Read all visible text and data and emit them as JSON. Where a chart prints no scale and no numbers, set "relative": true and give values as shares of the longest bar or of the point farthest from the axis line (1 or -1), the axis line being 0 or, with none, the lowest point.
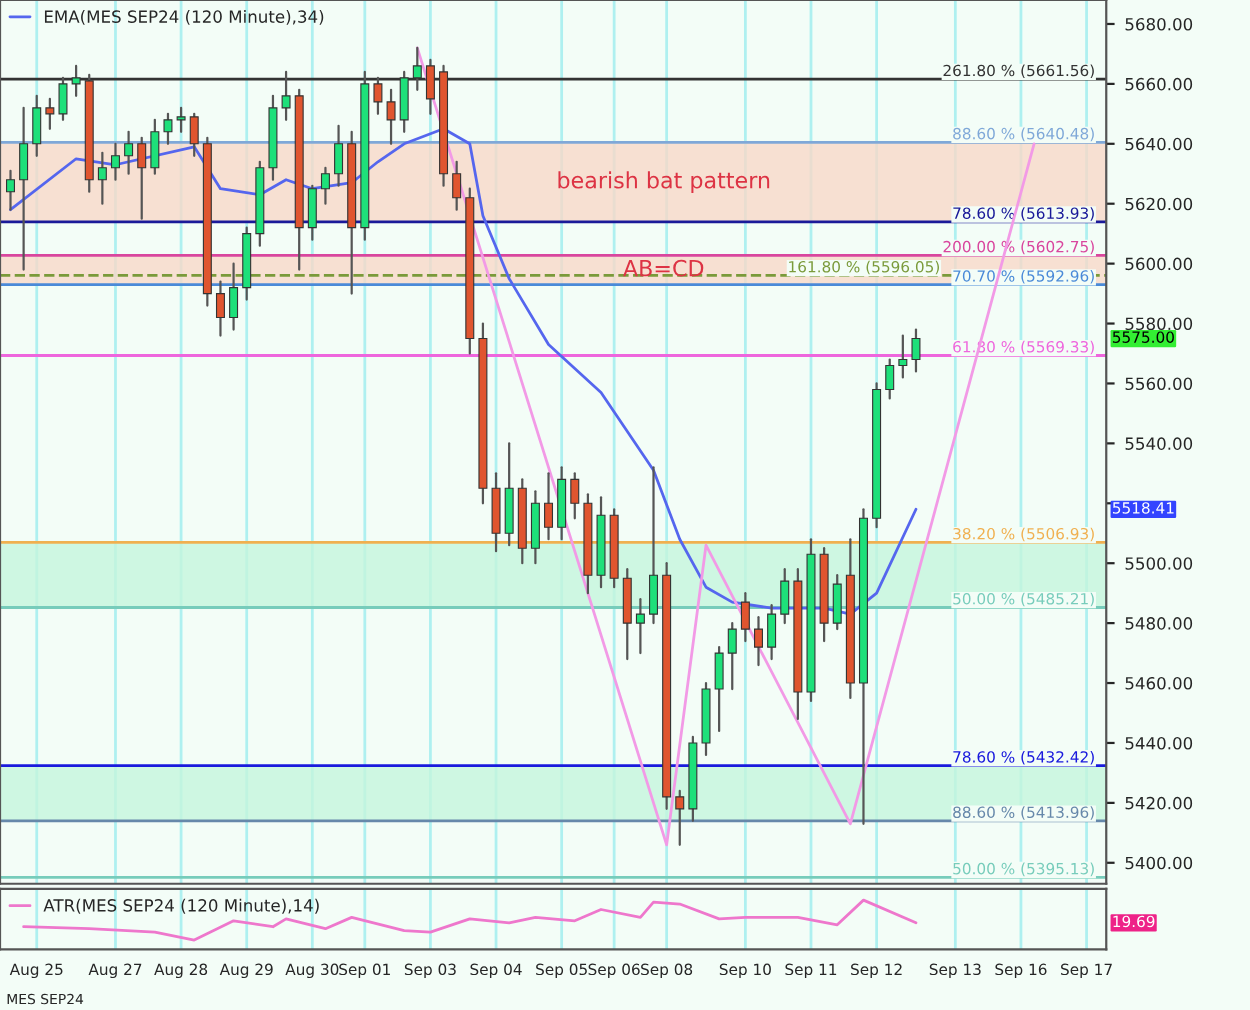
{
  "chart_data": [
    {
      "type": "candlestick",
      "categories": [
        null,
        null,
        null,
        null,
        null,
        null,
        null,
        null,
        null,
        null,
        null,
        null,
        null,
        null,
        null,
        null,
        null,
        null,
        null,
        null,
        null,
        null,
        null,
        null,
        null,
        null,
        null,
        null,
        null,
        null,
        null,
        null,
        null,
        null,
        null,
        null,
        null,
        null,
        null,
        null,
        null,
        null,
        null,
        null,
        null,
        null,
        null,
        null,
        null,
        null,
        null,
        null,
        null,
        null,
        null,
        null,
        null,
        null,
        null,
        null,
        null,
        null,
        null,
        null,
        null,
        null,
        null,
        null,
        null,
        null,
        null,
        null,
        null,
        null,
        null,
        null,
        null,
        null,
        null,
        null,
        null,
        null,
        null,
        null
      ],
      "ohlc": [
        [
          5624,
          5631,
          5618,
          5628
        ],
        [
          5628,
          5652,
          5598,
          5640
        ],
        [
          5640,
          5656,
          5636,
          5652
        ],
        [
          5652,
          5655,
          5645,
          5650
        ],
        [
          5650,
          5662,
          5648,
          5660
        ],
        [
          5660,
          5666,
          5656,
          5662
        ],
        [
          5661,
          5663,
          5624,
          5628
        ],
        [
          5628,
          5637,
          5620,
          5632
        ],
        [
          5632,
          5640,
          5628,
          5636
        ],
        [
          5636,
          5644,
          5630,
          5640
        ],
        [
          5640,
          5642,
          5615,
          5632
        ],
        [
          5632,
          5648,
          5630,
          5644
        ],
        [
          5644,
          5650,
          5640,
          5648
        ],
        [
          5648,
          5652,
          5644,
          5649
        ],
        [
          5649,
          5650,
          5636,
          5640
        ],
        [
          5640,
          5642,
          5586,
          5590
        ],
        [
          5590,
          5594,
          5576,
          5582
        ],
        [
          5582,
          5600,
          5578,
          5592
        ],
        [
          5592,
          5612,
          5588,
          5610
        ],
        [
          5610,
          5634,
          5606,
          5632
        ],
        [
          5632,
          5656,
          5628,
          5652
        ],
        [
          5652,
          5664,
          5648,
          5656
        ],
        [
          5656,
          5658,
          5598,
          5612
        ],
        [
          5612,
          5626,
          5608,
          5625
        ],
        [
          5625,
          5632,
          5620,
          5630
        ],
        [
          5630,
          5646,
          5626,
          5640
        ],
        [
          5640,
          5644,
          5590,
          5612
        ],
        [
          5612,
          5664,
          5608,
          5660
        ],
        [
          5660,
          5662,
          5650,
          5654
        ],
        [
          5654,
          5658,
          5640,
          5648
        ],
        [
          5648,
          5664,
          5644,
          5662
        ],
        [
          5662,
          5672,
          5658,
          5666
        ],
        [
          5666,
          5668,
          5650,
          5655
        ],
        [
          5664,
          5666,
          5626,
          5630
        ],
        [
          5630,
          5634,
          5618,
          5622
        ],
        [
          5622,
          5625,
          5570,
          5575
        ],
        [
          5575,
          5580,
          5520,
          5525
        ],
        [
          5525,
          5530,
          5504,
          5510
        ],
        [
          5510,
          5540,
          5506,
          5525
        ],
        [
          5525,
          5528,
          5500,
          5505
        ],
        [
          5505,
          5524,
          5500,
          5520
        ],
        [
          5520,
          5530,
          5508,
          5512
        ],
        [
          5512,
          5532,
          5508,
          5528
        ],
        [
          5528,
          5530,
          5515,
          5520
        ],
        [
          5520,
          5523,
          5490,
          5496
        ],
        [
          5496,
          5522,
          5492,
          5516
        ],
        [
          5516,
          5518,
          5492,
          5495
        ],
        [
          5495,
          5498,
          5468,
          5480
        ],
        [
          5480,
          5488,
          5470,
          5483
        ],
        [
          5483,
          5532,
          5480,
          5496
        ],
        [
          5496,
          5500,
          5418,
          5422
        ],
        [
          5422,
          5424,
          5406,
          5418
        ],
        [
          5418,
          5442,
          5414,
          5440
        ],
        [
          5440,
          5460,
          5436,
          5458
        ],
        [
          5458,
          5472,
          5444,
          5470
        ],
        [
          5470,
          5480,
          5458,
          5478
        ],
        [
          5487,
          5490,
          5474,
          5478
        ],
        [
          5478,
          5482,
          5466,
          5472
        ],
        [
          5472,
          5486,
          5468,
          5483
        ],
        [
          5483,
          5498,
          5480,
          5494
        ],
        [
          5494,
          5498,
          5448,
          5457
        ],
        [
          5457,
          5508,
          5454,
          5503
        ],
        [
          5503,
          5505,
          5474,
          5480
        ],
        [
          5480,
          5496,
          5478,
          5493
        ],
        [
          5496,
          5508,
          5455,
          5460
        ],
        [
          5460,
          5518,
          5413,
          5515
        ],
        [
          5515,
          5560,
          5512,
          5558
        ],
        [
          5558,
          5568,
          5555,
          5566
        ],
        [
          5566,
          5576,
          5562,
          5568
        ],
        [
          5568,
          5578,
          5564,
          5575
        ],
        null,
        null,
        null,
        null,
        null,
        null,
        null,
        null,
        null,
        null,
        null,
        null,
        null,
        null
      ],
      "series": [
        {
          "type": "line",
          "name": "EMA(MES SEP24 (120 Minute),34)",
          "color": "#5566ee",
          "values": [
            5618,
            null,
            null,
            null,
            null,
            5635,
            null,
            null,
            5633,
            null,
            null,
            null,
            null,
            null,
            5639,
            null,
            5625,
            null,
            null,
            5623,
            null,
            5628,
            null,
            5625,
            null,
            null,
            5627,
            null,
            5634,
            null,
            5640,
            null,
            null,
            5645,
            null,
            5640,
            5616,
            null,
            5595,
            null,
            null,
            5573,
            null,
            null,
            null,
            5557,
            null,
            null,
            null,
            5531,
            null,
            5508,
            null,
            5492,
            null,
            5487,
            null,
            null,
            5485,
            null,
            null,
            null,
            5485,
            null,
            5483,
            null,
            5490,
            null,
            null,
            5518,
            null,
            null,
            null,
            null,
            null,
            null,
            null,
            null,
            null,
            null,
            null,
            null,
            null,
            null
          ]
        },
        {
          "type": "line",
          "color": "#f29ae6",
          "values": [
            null,
            null,
            null,
            null,
            null,
            null,
            null,
            null,
            null,
            null,
            null,
            null,
            null,
            null,
            null,
            null,
            null,
            null,
            null,
            null,
            null,
            null,
            null,
            null,
            null,
            null,
            null,
            null,
            null,
            null,
            null,
            5672,
            null,
            null,
            null,
            null,
            null,
            null,
            null,
            null,
            null,
            null,
            null,
            null,
            null,
            null,
            null,
            null,
            null,
            null,
            5406,
            null,
            null,
            5506,
            null,
            null,
            null,
            null,
            null,
            null,
            null,
            null,
            null,
            null,
            5413,
            null,
            null,
            null,
            null,
            null,
            null,
            null,
            null,
            null,
            null,
            null,
            null,
            null,
            5640,
            null,
            null,
            null,
            null,
            null
          ]
        }
      ],
      "ylim": [
        5393,
        5688
      ],
      "yticks": [
        {
          "value": 5400,
          "label": "5400.00"
        },
        {
          "value": 5420,
          "label": "5420.00"
        },
        {
          "value": 5440,
          "label": "5440.00"
        },
        {
          "value": 5460,
          "label": "5460.00"
        },
        {
          "value": 5480,
          "label": "5480.00"
        },
        {
          "value": 5500,
          "label": "5500.00"
        },
        {
          "value": 5520,
          "label": null
        },
        {
          "value": 5540,
          "label": "5540.00"
        },
        {
          "value": 5560,
          "label": "5560.00"
        },
        {
          "value": 5580,
          "label": "5580.00"
        },
        {
          "value": 5600,
          "label": "5600.00"
        },
        {
          "value": 5620,
          "label": "5620.00"
        },
        {
          "value": 5640,
          "label": "5640.00"
        },
        {
          "value": 5660,
          "label": "5660.00"
        },
        {
          "value": 5680,
          "label": "5680.00"
        }
      ],
      "tick_labels": "y",
      "grid": "x",
      "legend": "top left",
      "ref_lines": [
        {
          "axis": "y",
          "value": 5661.56,
          "label": "261.80 % (5661.56)",
          "color": "#333333"
        },
        {
          "axis": "y",
          "value": 5640.48,
          "label": "88.60 % (5640.48)",
          "color": "#7fa8d8"
        },
        {
          "axis": "y",
          "value": 5613.93,
          "label": "78.60 % (5613.93)",
          "color": "#1a1a99"
        },
        {
          "axis": "y",
          "value": 5602.75,
          "label": "200.00 % (5602.75)",
          "color": "#d9469e"
        },
        {
          "axis": "y",
          "value": 5596.05,
          "label": "161.80 % (5596.05)",
          "color": "#7a9a3a",
          "line_style": "dashed"
        },
        {
          "axis": "y",
          "value": 5592.96,
          "label": "70.70 % (5592.96)",
          "color": "#4a8ad8"
        },
        {
          "axis": "y",
          "value": 5569.33,
          "label": "61.80 % (5569.33)",
          "color": "#ee66dd"
        },
        {
          "axis": "y",
          "value": 5506.93,
          "label": "38.20 % (5506.93)",
          "color": "#f0b050"
        },
        {
          "axis": "y",
          "value": 5485.21,
          "label": "50.00 % (5485.21)",
          "color": "#77ccbb"
        },
        {
          "axis": "y",
          "value": 5432.42,
          "label": "78.60 % (5432.42)",
          "color": "#1a1add"
        },
        {
          "axis": "y",
          "value": 5413.96,
          "label": "88.60 % (5413.96)",
          "color": "#6688aa"
        },
        {
          "axis": "y",
          "value": 5395.13,
          "label": "50.00 % (5395.13)",
          "color": "#77ccbb"
        }
      ],
      "bands": [
        {
          "axis": "y",
          "from": 5613.93,
          "to": 5640.48,
          "label": "bearish bat pattern",
          "color": "#f8d8c8"
        },
        {
          "axis": "y",
          "from": 5592.96,
          "to": 5602.75,
          "label": "AB=CD",
          "color": "#f8d8c8"
        },
        {
          "axis": "y",
          "from": 5485.21,
          "to": 5506.93,
          "color": "#c4f5dc"
        },
        {
          "axis": "y",
          "from": 5413.96,
          "to": 5432.42,
          "color": "#c4f5dc"
        }
      ],
      "annotations": [
        "5575.00",
        "5518.41"
      ]
    },
    {
      "type": "line",
      "relative": true,
      "categories": [
        null,
        null,
        "Aug 25",
        null,
        null,
        null,
        null,
        null,
        "Aug 27",
        null,
        null,
        null,
        null,
        "Aug 28",
        null,
        null,
        null,
        null,
        "Aug 29",
        null,
        null,
        null,
        null,
        "Aug 30",
        null,
        null,
        null,
        "Sep 01",
        null,
        null,
        null,
        null,
        "Sep 03",
        null,
        null,
        null,
        null,
        "Sep 04",
        null,
        null,
        null,
        null,
        "Sep 05",
        null,
        null,
        null,
        "Sep 06",
        null,
        null,
        null,
        "Sep 08",
        null,
        null,
        null,
        null,
        null,
        "Sep 10",
        null,
        null,
        null,
        null,
        "Sep 11",
        null,
        null,
        null,
        null,
        "Sep 12",
        null,
        null,
        null,
        null,
        null,
        "Sep 13",
        null,
        null,
        null,
        null,
        "Sep 16",
        null,
        null,
        null,
        null,
        "Sep 17",
        null
      ],
      "series": [
        {
          "name": "ATR(MES SEP24 (120 Minute),14)",
          "color": "#ee77cc",
          "values": [
            null,
            0.46,
            null,
            null,
            null,
            null,
            0.42,
            null,
            null,
            null,
            null,
            0.35,
            null,
            null,
            0.19,
            null,
            null,
            0.58,
            null,
            null,
            0.46,
            0.62,
            null,
            null,
            0.42,
            null,
            0.65,
            null,
            null,
            null,
            0.38,
            null,
            0.35,
            null,
            null,
            0.62,
            null,
            null,
            0.54,
            null,
            0.65,
            null,
            null,
            0.58,
            null,
            0.81,
            null,
            null,
            0.65,
            0.96,
            null,
            0.92,
            null,
            null,
            0.62,
            null,
            0.65,
            null,
            null,
            null,
            0.65,
            null,
            null,
            0.5,
            null,
            1,
            null,
            null,
            null,
            0.54,
            null,
            null,
            null,
            null,
            null,
            null,
            null,
            null,
            null,
            null,
            null,
            null,
            null,
            null
          ]
        }
      ],
      "tick_labels": "x",
      "grid": "x",
      "legend": "top left",
      "annotations": [
        "19.69",
        "MES SEP24"
      ]
    }
  ]
}
